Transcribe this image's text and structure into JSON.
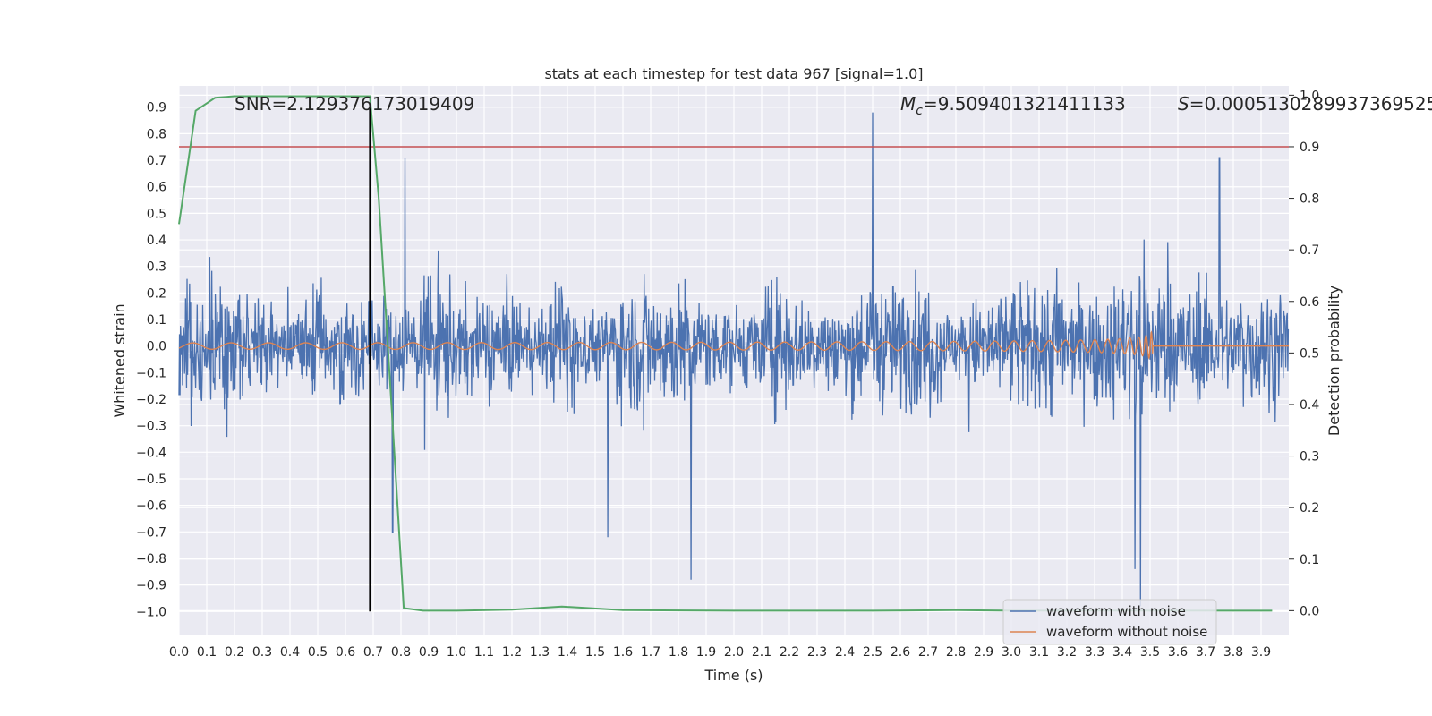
{
  "chart_data": {
    "type": "line",
    "title": "stats at each timestep for test data 967 [signal=1.0]",
    "xlabel": "Time (s)",
    "ylabel": "Whitened strain",
    "y2label": "Detection probability",
    "xlim": [
      0.0,
      4.0
    ],
    "ylim": [
      -1.09,
      0.98
    ],
    "y2lim": [
      -0.048,
      1.018
    ],
    "xticks": [
      0.0,
      0.1,
      0.2,
      0.3,
      0.4,
      0.5,
      0.6,
      0.7,
      0.8,
      0.9,
      1.0,
      1.1,
      1.2,
      1.3,
      1.4,
      1.5,
      1.6,
      1.7,
      1.8,
      1.9,
      2.0,
      2.1,
      2.2,
      2.3,
      2.4,
      2.5,
      2.6,
      2.7,
      2.8,
      2.9,
      3.0,
      3.1,
      3.2,
      3.3,
      3.4,
      3.5,
      3.6,
      3.7,
      3.8,
      3.9
    ],
    "yticks": [
      0.9,
      0.8,
      0.7,
      0.6,
      0.5,
      0.4,
      0.3,
      0.2,
      0.1,
      0.0,
      -0.1,
      -0.2,
      -0.3,
      -0.4,
      -0.5,
      -0.6,
      -0.7,
      -0.8,
      -0.9,
      -1.0
    ],
    "y2ticks": [
      1.0,
      0.9,
      0.8,
      0.7,
      0.6,
      0.5,
      0.4,
      0.3,
      0.2,
      0.1,
      0.0
    ],
    "annotations": {
      "snr": "SNR=2.129376173019409",
      "mc_symbol": "M",
      "mc_sub": "c",
      "mc_value": "=9.509401321411133",
      "s_symbol": "S",
      "s_value": "=0.0005130289937369525"
    },
    "threshold_line": {
      "y2": 0.9,
      "color": "#c44e52"
    },
    "event_marker": {
      "x": 0.688,
      "color": "#000000"
    },
    "series": [
      {
        "name": "waveform with noise",
        "color": "#4c72b0",
        "axis": "left",
        "description": "noisy whitened strain sampled across 0-4 s, roughly between -0.7 and 0.7 with spikes up to 0.88 and down to -0.98"
      },
      {
        "name": "waveform without noise",
        "color": "#dd8452",
        "axis": "left",
        "description": "chirp signal growing in amplitude until merger near 3.51 s, flat zero afterwards"
      },
      {
        "name": "detection probability",
        "color": "#55a868",
        "axis": "right",
        "x": [
          0.0,
          0.06,
          0.13,
          0.2,
          0.4,
          0.6,
          0.688,
          0.72,
          0.76,
          0.81,
          0.88,
          1.0,
          1.2,
          1.38,
          1.6,
          2.0,
          2.5,
          2.8,
          3.0,
          3.2,
          3.5,
          3.7,
          3.94
        ],
        "values": [
          0.75,
          0.97,
          0.995,
          0.998,
          0.998,
          0.998,
          0.998,
          0.8,
          0.45,
          0.005,
          0.0,
          0.0,
          0.002,
          0.008,
          0.001,
          0.0,
          0.0,
          0.001,
          0.0,
          0.0,
          0.0,
          0.0,
          0.0
        ]
      }
    ],
    "legend": {
      "position": "lower-right",
      "entries": [
        "waveform with noise",
        "waveform without noise"
      ]
    }
  }
}
